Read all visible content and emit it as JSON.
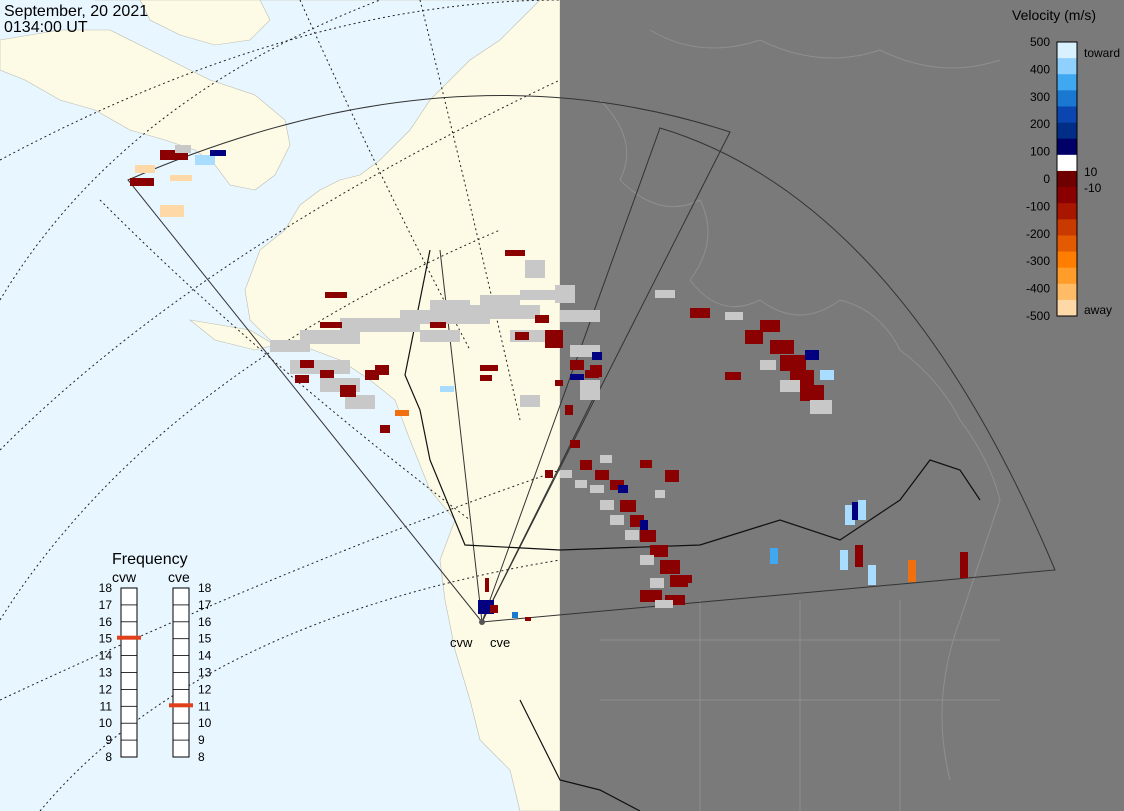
{
  "header": {
    "date": "September, 20 2021",
    "time": "0134:00 UT"
  },
  "velocity_legend": {
    "title": "Velocity (m/s)",
    "toward_label": "toward",
    "away_label": "away",
    "ticks": [
      "500",
      "400",
      "300",
      "200",
      "100",
      "0",
      "-100",
      "-200",
      "-300",
      "-400",
      "-500"
    ],
    "inner_ticks": [
      "10",
      "-10"
    ],
    "colors": [
      "#d9f0ff",
      "#8fd0ff",
      "#40a8f0",
      "#1a78d0",
      "#0b46b0",
      "#002e86",
      "#000066",
      "#ffffff",
      "#6e0000",
      "#8a0000",
      "#a81600",
      "#c83a00",
      "#e45a00",
      "#ff7d00",
      "#ff9c2a",
      "#ffbb66",
      "#ffd8a8"
    ]
  },
  "frequency_legend": {
    "title": "Frequency",
    "radars": [
      "cvw",
      "cve"
    ],
    "levels": [
      "18",
      "17",
      "16",
      "15",
      "14",
      "13",
      "12",
      "11",
      "10",
      "9",
      "8"
    ],
    "cvw_value": 15,
    "cve_value": 11,
    "marker_color": "#e0401a"
  },
  "radar_sites": [
    "cvw",
    "cve"
  ],
  "map_colors": {
    "ocean": "#e8f6ff",
    "land": "#fdfbe6",
    "night": "#7a7a7a",
    "scatter_ground": "#c8c8c8",
    "away_dark": "#8b0000",
    "toward_dark": "#000080",
    "toward_light": "#a8ddff",
    "orange": "#f07010"
  }
}
